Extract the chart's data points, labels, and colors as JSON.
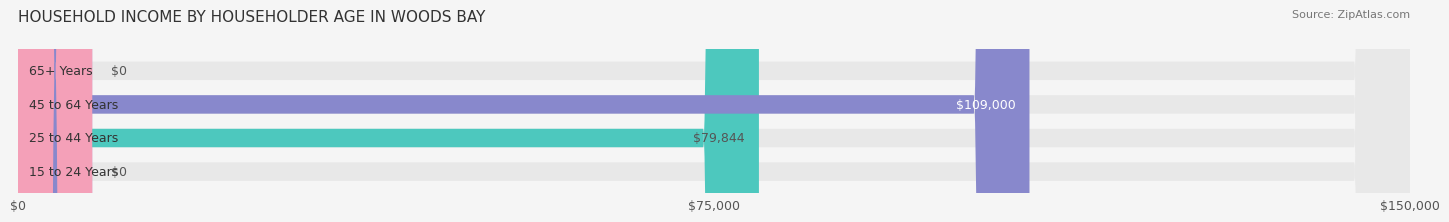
{
  "title": "HOUSEHOLD INCOME BY HOUSEHOLDER AGE IN WOODS BAY",
  "source": "Source: ZipAtlas.com",
  "categories": [
    "15 to 24 Years",
    "25 to 44 Years",
    "45 to 64 Years",
    "65+ Years"
  ],
  "values": [
    0,
    79844,
    109000,
    0
  ],
  "bar_colors": [
    "#c9a8d4",
    "#4dc8be",
    "#8888cc",
    "#f4a0b8"
  ],
  "bar_bg_color": "#e8e8e8",
  "value_labels": [
    "$0",
    "$79,844",
    "$109,000",
    "$0"
  ],
  "value_label_colors": [
    "#555555",
    "#555555",
    "#ffffff",
    "#555555"
  ],
  "xlim": [
    0,
    150000
  ],
  "xticks": [
    0,
    75000,
    150000
  ],
  "xticklabels": [
    "$0",
    "$75,000",
    "$150,000"
  ],
  "title_fontsize": 11,
  "source_fontsize": 8,
  "label_fontsize": 9,
  "tick_fontsize": 9,
  "background_color": "#f5f5f5"
}
